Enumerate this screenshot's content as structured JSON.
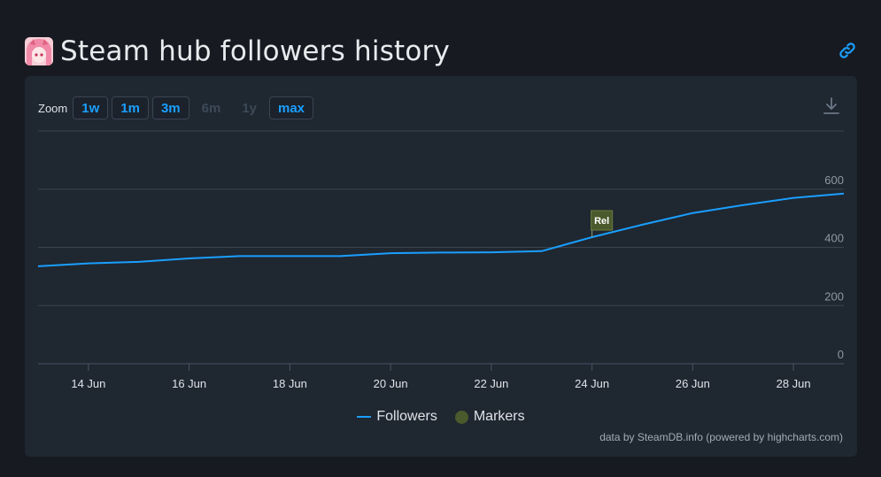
{
  "header": {
    "title": "Steam hub followers history",
    "avatar_icon": "anime-avatar-icon",
    "link_icon": "link-icon"
  },
  "zoom": {
    "label": "Zoom",
    "buttons": [
      {
        "label": "1w",
        "enabled": true
      },
      {
        "label": "1m",
        "enabled": true
      },
      {
        "label": "3m",
        "enabled": true
      },
      {
        "label": "6m",
        "enabled": false
      },
      {
        "label": "1y",
        "enabled": false
      },
      {
        "label": "max",
        "enabled": true
      }
    ]
  },
  "download_icon": "download-icon",
  "colors": {
    "line": "#1a9fff",
    "marker": "#4a5a2c",
    "grid": "#3a4450"
  },
  "chart_data": {
    "type": "line",
    "title": "",
    "xlabel": "",
    "ylabel": "",
    "ylim": [
      0,
      800
    ],
    "yticks": [
      0,
      200,
      400,
      600
    ],
    "xlim": [
      "2024-06-13",
      "2024-06-29"
    ],
    "xticks": [
      {
        "date": "2024-06-14",
        "label": "14 Jun"
      },
      {
        "date": "2024-06-16",
        "label": "16 Jun"
      },
      {
        "date": "2024-06-18",
        "label": "18 Jun"
      },
      {
        "date": "2024-06-20",
        "label": "20 Jun"
      },
      {
        "date": "2024-06-22",
        "label": "22 Jun"
      },
      {
        "date": "2024-06-24",
        "label": "24 Jun"
      },
      {
        "date": "2024-06-26",
        "label": "26 Jun"
      },
      {
        "date": "2024-06-28",
        "label": "28 Jun"
      }
    ],
    "grid": true,
    "legend_position": "bottom-center",
    "series": [
      {
        "name": "Followers",
        "points": [
          {
            "x": "2024-06-13",
            "y": 335
          },
          {
            "x": "2024-06-14",
            "y": 345
          },
          {
            "x": "2024-06-15",
            "y": 350
          },
          {
            "x": "2024-06-16",
            "y": 362
          },
          {
            "x": "2024-06-17",
            "y": 370
          },
          {
            "x": "2024-06-18",
            "y": 370
          },
          {
            "x": "2024-06-19",
            "y": 370
          },
          {
            "x": "2024-06-20",
            "y": 380
          },
          {
            "x": "2024-06-21",
            "y": 382
          },
          {
            "x": "2024-06-22",
            "y": 383
          },
          {
            "x": "2024-06-23",
            "y": 387
          },
          {
            "x": "2024-06-24",
            "y": 435
          },
          {
            "x": "2024-06-25",
            "y": 478
          },
          {
            "x": "2024-06-26",
            "y": 518
          },
          {
            "x": "2024-06-27",
            "y": 545
          },
          {
            "x": "2024-06-28",
            "y": 570
          },
          {
            "x": "2024-06-29",
            "y": 585
          }
        ]
      }
    ],
    "markers_series": {
      "name": "Markers",
      "flags": [
        {
          "x": "2024-06-24",
          "label": "Rel"
        }
      ]
    }
  },
  "credits": "data by SteamDB.info (powered by highcharts.com)"
}
